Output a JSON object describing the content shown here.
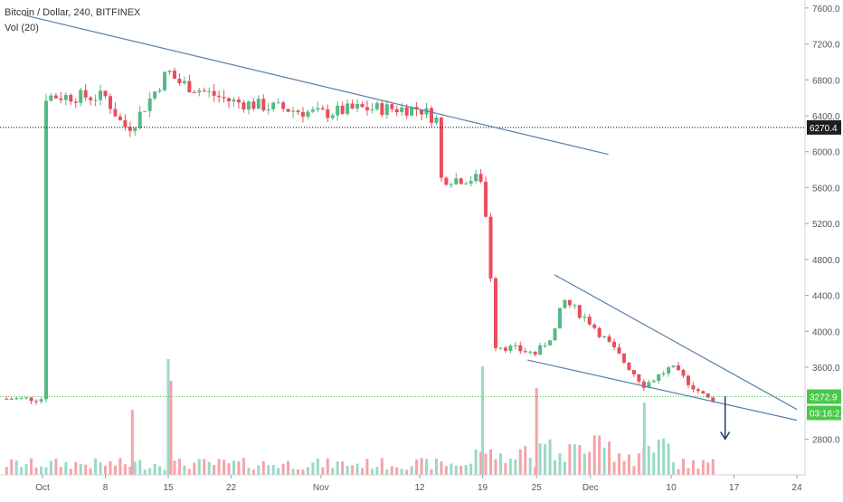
{
  "legend": {
    "title": "Bitcoin / Dollar, 240, BITFINEX",
    "volume": "Vol (20)"
  },
  "price_badges": {
    "reference": "6270.4",
    "last": "3272.9",
    "countdown": "03:16:21"
  },
  "colors": {
    "up": "#53b987",
    "down": "#eb4d5c",
    "trendline": "#5b7fa8",
    "reference_line": "#000000",
    "last_line": "#49c94a",
    "arrow": "#1f3c6b",
    "volume_up": "#9ad9c7",
    "volume_down": "#f5a3a8"
  },
  "chart_data": {
    "type": "candlestick",
    "title": "Bitcoin / Dollar, 240, BITFINEX",
    "ylim": [
      2600,
      7800
    ],
    "y_ticks": [
      7600,
      7200,
      6800,
      6400,
      6000,
      5600,
      5200,
      4800,
      4400,
      4000,
      3600,
      2800
    ],
    "x_ticks": [
      "Oct",
      "8",
      "15",
      "22",
      "Nov",
      "12",
      "19",
      "25",
      "Dec",
      "10",
      "17",
      "24"
    ],
    "price_path": [
      [
        "Oct",
        6620
      ],
      [
        "8",
        6610
      ],
      [
        "10",
        6280
      ],
      [
        "11",
        6290
      ],
      [
        "15",
        6900
      ],
      [
        "16",
        6780
      ],
      [
        "22",
        6560
      ],
      [
        "Nov",
        6420
      ],
      [
        "5",
        6480
      ],
      [
        "12",
        6480
      ],
      [
        "14",
        6350
      ],
      [
        "15",
        5680
      ],
      [
        "19",
        5700
      ],
      [
        "20",
        4500
      ],
      [
        "22",
        4500
      ],
      [
        "25",
        3750
      ],
      [
        "27",
        4000
      ],
      [
        "28",
        4350
      ],
      [
        "Dec",
        4100
      ],
      [
        "7",
        3400
      ],
      [
        "10",
        3600
      ],
      [
        "14",
        3250
      ]
    ],
    "reference_line": 6270.4,
    "last_price": 3272.9,
    "annotations": [
      {
        "type": "trendline",
        "from": [
          "Sep 29",
          7520
        ],
        "to": [
          "Dec 3",
          5970
        ]
      },
      {
        "type": "trendline",
        "from": [
          "Nov 24",
          3680
        ],
        "to": [
          "Dec 24",
          3010
        ]
      },
      {
        "type": "trendline",
        "from": [
          "Nov 27",
          4630
        ],
        "to": [
          "Dec 24",
          3130
        ]
      },
      {
        "type": "arrow",
        "from": [
          "Dec 16",
          3280
        ],
        "to": [
          "Dec 16",
          2800
        ]
      }
    ],
    "volume": {
      "name": "Vol (20)",
      "spikes": [
        [
          "11",
          0.45
        ],
        [
          "15",
          0.8
        ],
        [
          "15",
          0.65
        ],
        [
          "19",
          0.75
        ],
        [
          "25",
          0.6
        ],
        [
          "Dec 7",
          0.5
        ]
      ]
    }
  }
}
